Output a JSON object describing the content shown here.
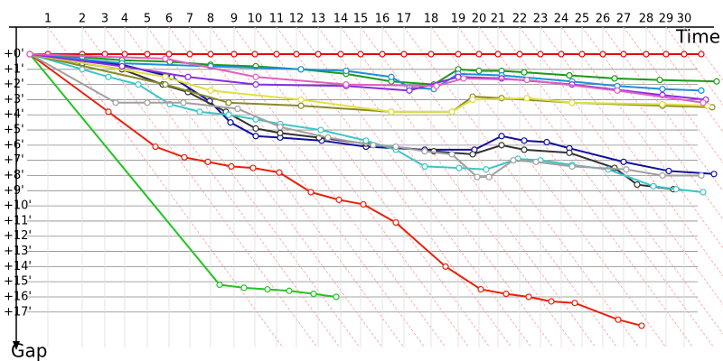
{
  "chart_data": {
    "type": "line",
    "x_label": "Time",
    "y_label": "Gap",
    "xlim": [
      0,
      765
    ],
    "ylim": [
      0,
      18.5
    ],
    "y_inverted": true,
    "grid": true,
    "xticks": [
      {
        "value": 20,
        "label": "1"
      },
      {
        "value": 58,
        "label": "2"
      },
      {
        "value": 83,
        "label": "3"
      },
      {
        "value": 105,
        "label": "4"
      },
      {
        "value": 130,
        "label": "5"
      },
      {
        "value": 154,
        "label": "6"
      },
      {
        "value": 177,
        "label": "7"
      },
      {
        "value": 200,
        "label": "8"
      },
      {
        "value": 226,
        "label": "9"
      },
      {
        "value": 249,
        "label": "10"
      },
      {
        "value": 273,
        "label": "11"
      },
      {
        "value": 295,
        "label": "12"
      },
      {
        "value": 319,
        "label": "13"
      },
      {
        "value": 344,
        "label": "14"
      },
      {
        "value": 366,
        "label": "15"
      },
      {
        "value": 390,
        "label": "16"
      },
      {
        "value": 414,
        "label": "17"
      },
      {
        "value": 444,
        "label": "18"
      },
      {
        "value": 474,
        "label": "19"
      },
      {
        "value": 497,
        "label": "20"
      },
      {
        "value": 518,
        "label": "21"
      },
      {
        "value": 542,
        "label": "22"
      },
      {
        "value": 565,
        "label": "23"
      },
      {
        "value": 588,
        "label": "24"
      },
      {
        "value": 611,
        "label": "25"
      },
      {
        "value": 634,
        "label": "26"
      },
      {
        "value": 657,
        "label": "27"
      },
      {
        "value": 682,
        "label": "28"
      },
      {
        "value": 704,
        "label": "29"
      },
      {
        "value": 724,
        "label": "30"
      }
    ],
    "yticks": [
      {
        "value": 0,
        "label": "+0'"
      },
      {
        "value": 1,
        "label": "+1'"
      },
      {
        "value": 2,
        "label": "+2'"
      },
      {
        "value": 3,
        "label": "+3'"
      },
      {
        "value": 4,
        "label": "+4'"
      },
      {
        "value": 5,
        "label": "+5'"
      },
      {
        "value": 6,
        "label": "+6'"
      },
      {
        "value": 7,
        "label": "+7'"
      },
      {
        "value": 8,
        "label": "+8'"
      },
      {
        "value": 9,
        "label": "+9'"
      },
      {
        "value": 10,
        "label": "+10'"
      },
      {
        "value": 11,
        "label": "+11'"
      },
      {
        "value": 12,
        "label": "+12'"
      },
      {
        "value": 13,
        "label": "+13'"
      },
      {
        "value": 14,
        "label": "+14'"
      },
      {
        "value": 15,
        "label": "+15'"
      },
      {
        "value": 16,
        "label": "+16'"
      },
      {
        "value": 17,
        "label": "+17'"
      }
    ],
    "series": [
      {
        "color": "#e8000b",
        "x": [
          0,
          20,
          58,
          83,
          105,
          130,
          154,
          177,
          200,
          226,
          249,
          273,
          295,
          319,
          344,
          366,
          390,
          414,
          444,
          474,
          497,
          518,
          542,
          565,
          588,
          611,
          634,
          657,
          682,
          704,
          724,
          743
        ],
        "values": [
          0,
          0,
          0,
          0,
          0,
          0,
          0,
          0,
          0,
          0,
          0,
          0,
          0,
          0,
          0,
          0,
          0,
          0,
          0,
          0,
          0,
          0,
          0,
          0,
          0,
          0,
          0,
          0,
          0,
          0,
          0,
          0
        ]
      },
      {
        "color": "#22c422",
        "x": [
          0,
          210,
          237,
          263,
          287,
          314,
          339
        ],
        "values": [
          0,
          15.2,
          15.4,
          15.5,
          15.6,
          15.8,
          16.0
        ]
      },
      {
        "color": "#e8200b",
        "x": [
          0,
          87,
          139,
          171,
          197,
          223,
          247,
          276,
          311,
          342,
          369,
          405,
          460,
          499,
          527,
          552,
          577,
          603,
          651,
          677
        ],
        "values": [
          0,
          3.8,
          6.1,
          6.8,
          7.1,
          7.4,
          7.5,
          7.8,
          9.1,
          9.6,
          9.9,
          11.1,
          14.0,
          15.5,
          15.8,
          16.0,
          16.3,
          16.4,
          17.5,
          17.9
        ]
      },
      {
        "color": "#1010a0",
        "x": [
          0,
          58,
          102,
          157,
          199,
          222,
          250,
          277,
          323,
          372,
          437,
          492,
          522,
          547,
          572,
          597,
          657,
          707,
          757
        ],
        "values": [
          0,
          0.4,
          0.7,
          1.5,
          3.1,
          4.5,
          5.4,
          5.5,
          5.7,
          6.1,
          6.3,
          6.3,
          5.4,
          5.7,
          5.8,
          6.2,
          7.1,
          7.7,
          7.9
        ]
      },
      {
        "color": "#333333",
        "x": [
          0,
          58,
          102,
          147,
          175,
          217,
          250,
          277,
          320,
          372,
          447,
          490,
          522,
          547,
          597,
          647,
          672,
          712
        ],
        "values": [
          0,
          0.6,
          1.0,
          2.0,
          2.5,
          3.8,
          4.9,
          5.2,
          5.5,
          5.9,
          6.4,
          6.6,
          6.0,
          6.3,
          6.5,
          7.5,
          8.6,
          8.9
        ]
      },
      {
        "color": "#3cc6c6",
        "x": [
          0,
          58,
          87,
          120,
          155,
          188,
          220,
          250,
          277,
          322,
          372,
          405,
          437,
          475,
          505,
          540,
          565,
          600,
          640,
          690,
          715,
          745
        ],
        "values": [
          0,
          1.0,
          1.5,
          2.0,
          3.3,
          3.8,
          4.0,
          4.3,
          4.6,
          5.0,
          5.7,
          6.3,
          7.4,
          7.5,
          7.6,
          6.9,
          7.0,
          7.3,
          7.6,
          8.7,
          8.9,
          9.1
        ]
      },
      {
        "color": "#a0a0a0",
        "x": [
          0,
          95,
          130,
          170,
          230,
          277,
          330,
          380,
          405,
          437,
          467,
          495,
          508,
          535,
          560,
          600,
          660,
          700,
          743
        ],
        "values": [
          0,
          3.2,
          3.2,
          3.2,
          3.6,
          4.8,
          5.5,
          6.0,
          6.1,
          6.4,
          6.6,
          8.1,
          8.1,
          7.0,
          7.1,
          7.4,
          7.6,
          8.0,
          8.0
        ]
      },
      {
        "color": "#1a9a1a",
        "x": [
          0,
          58,
          102,
          155,
          200,
          250,
          300,
          350,
          400,
          447,
          474,
          497,
          522,
          547,
          597,
          647,
          697,
          760
        ],
        "values": [
          0,
          0.2,
          0.4,
          0.5,
          0.7,
          0.8,
          1.0,
          1.3,
          1.8,
          2.0,
          1.0,
          1.1,
          1.1,
          1.2,
          1.4,
          1.6,
          1.7,
          1.8
        ]
      },
      {
        "color": "#1e8fd8",
        "x": [
          0,
          102,
          200,
          300,
          350,
          400,
          420,
          447,
          474,
          522,
          600,
          650,
          700,
          743
        ],
        "values": [
          0,
          0.6,
          0.8,
          1.0,
          1.1,
          1.5,
          2.2,
          2.3,
          1.3,
          1.4,
          1.8,
          2.1,
          2.3,
          2.4
        ]
      },
      {
        "color": "#8a8a2a",
        "x": [
          0,
          150,
          220,
          300,
          400,
          467,
          490,
          522,
          600,
          700,
          755
        ],
        "values": [
          0,
          2.0,
          3.2,
          3.4,
          3.8,
          3.8,
          2.8,
          2.9,
          3.2,
          3.4,
          3.5
        ]
      },
      {
        "color": "#e0e040",
        "x": [
          0,
          150,
          200,
          300,
          400,
          467,
          490,
          550,
          600,
          700,
          750
        ],
        "values": [
          0,
          1.5,
          2.4,
          3.0,
          3.8,
          3.8,
          3.0,
          2.9,
          3.2,
          3.3,
          3.4
        ]
      },
      {
        "color": "#8a2be2",
        "x": [
          0,
          102,
          175,
          250,
          350,
          420,
          474,
          522,
          600,
          700,
          748
        ],
        "values": [
          0,
          0.8,
          1.5,
          2.0,
          2.1,
          2.4,
          1.5,
          1.6,
          2.0,
          2.7,
          3.0
        ]
      },
      {
        "color": "#e060c0",
        "x": [
          0,
          150,
          250,
          350,
          450,
          480,
          550,
          650,
          745
        ],
        "values": [
          0,
          0.3,
          1.5,
          2.0,
          2.1,
          1.6,
          1.7,
          2.4,
          3.2
        ]
      }
    ]
  }
}
